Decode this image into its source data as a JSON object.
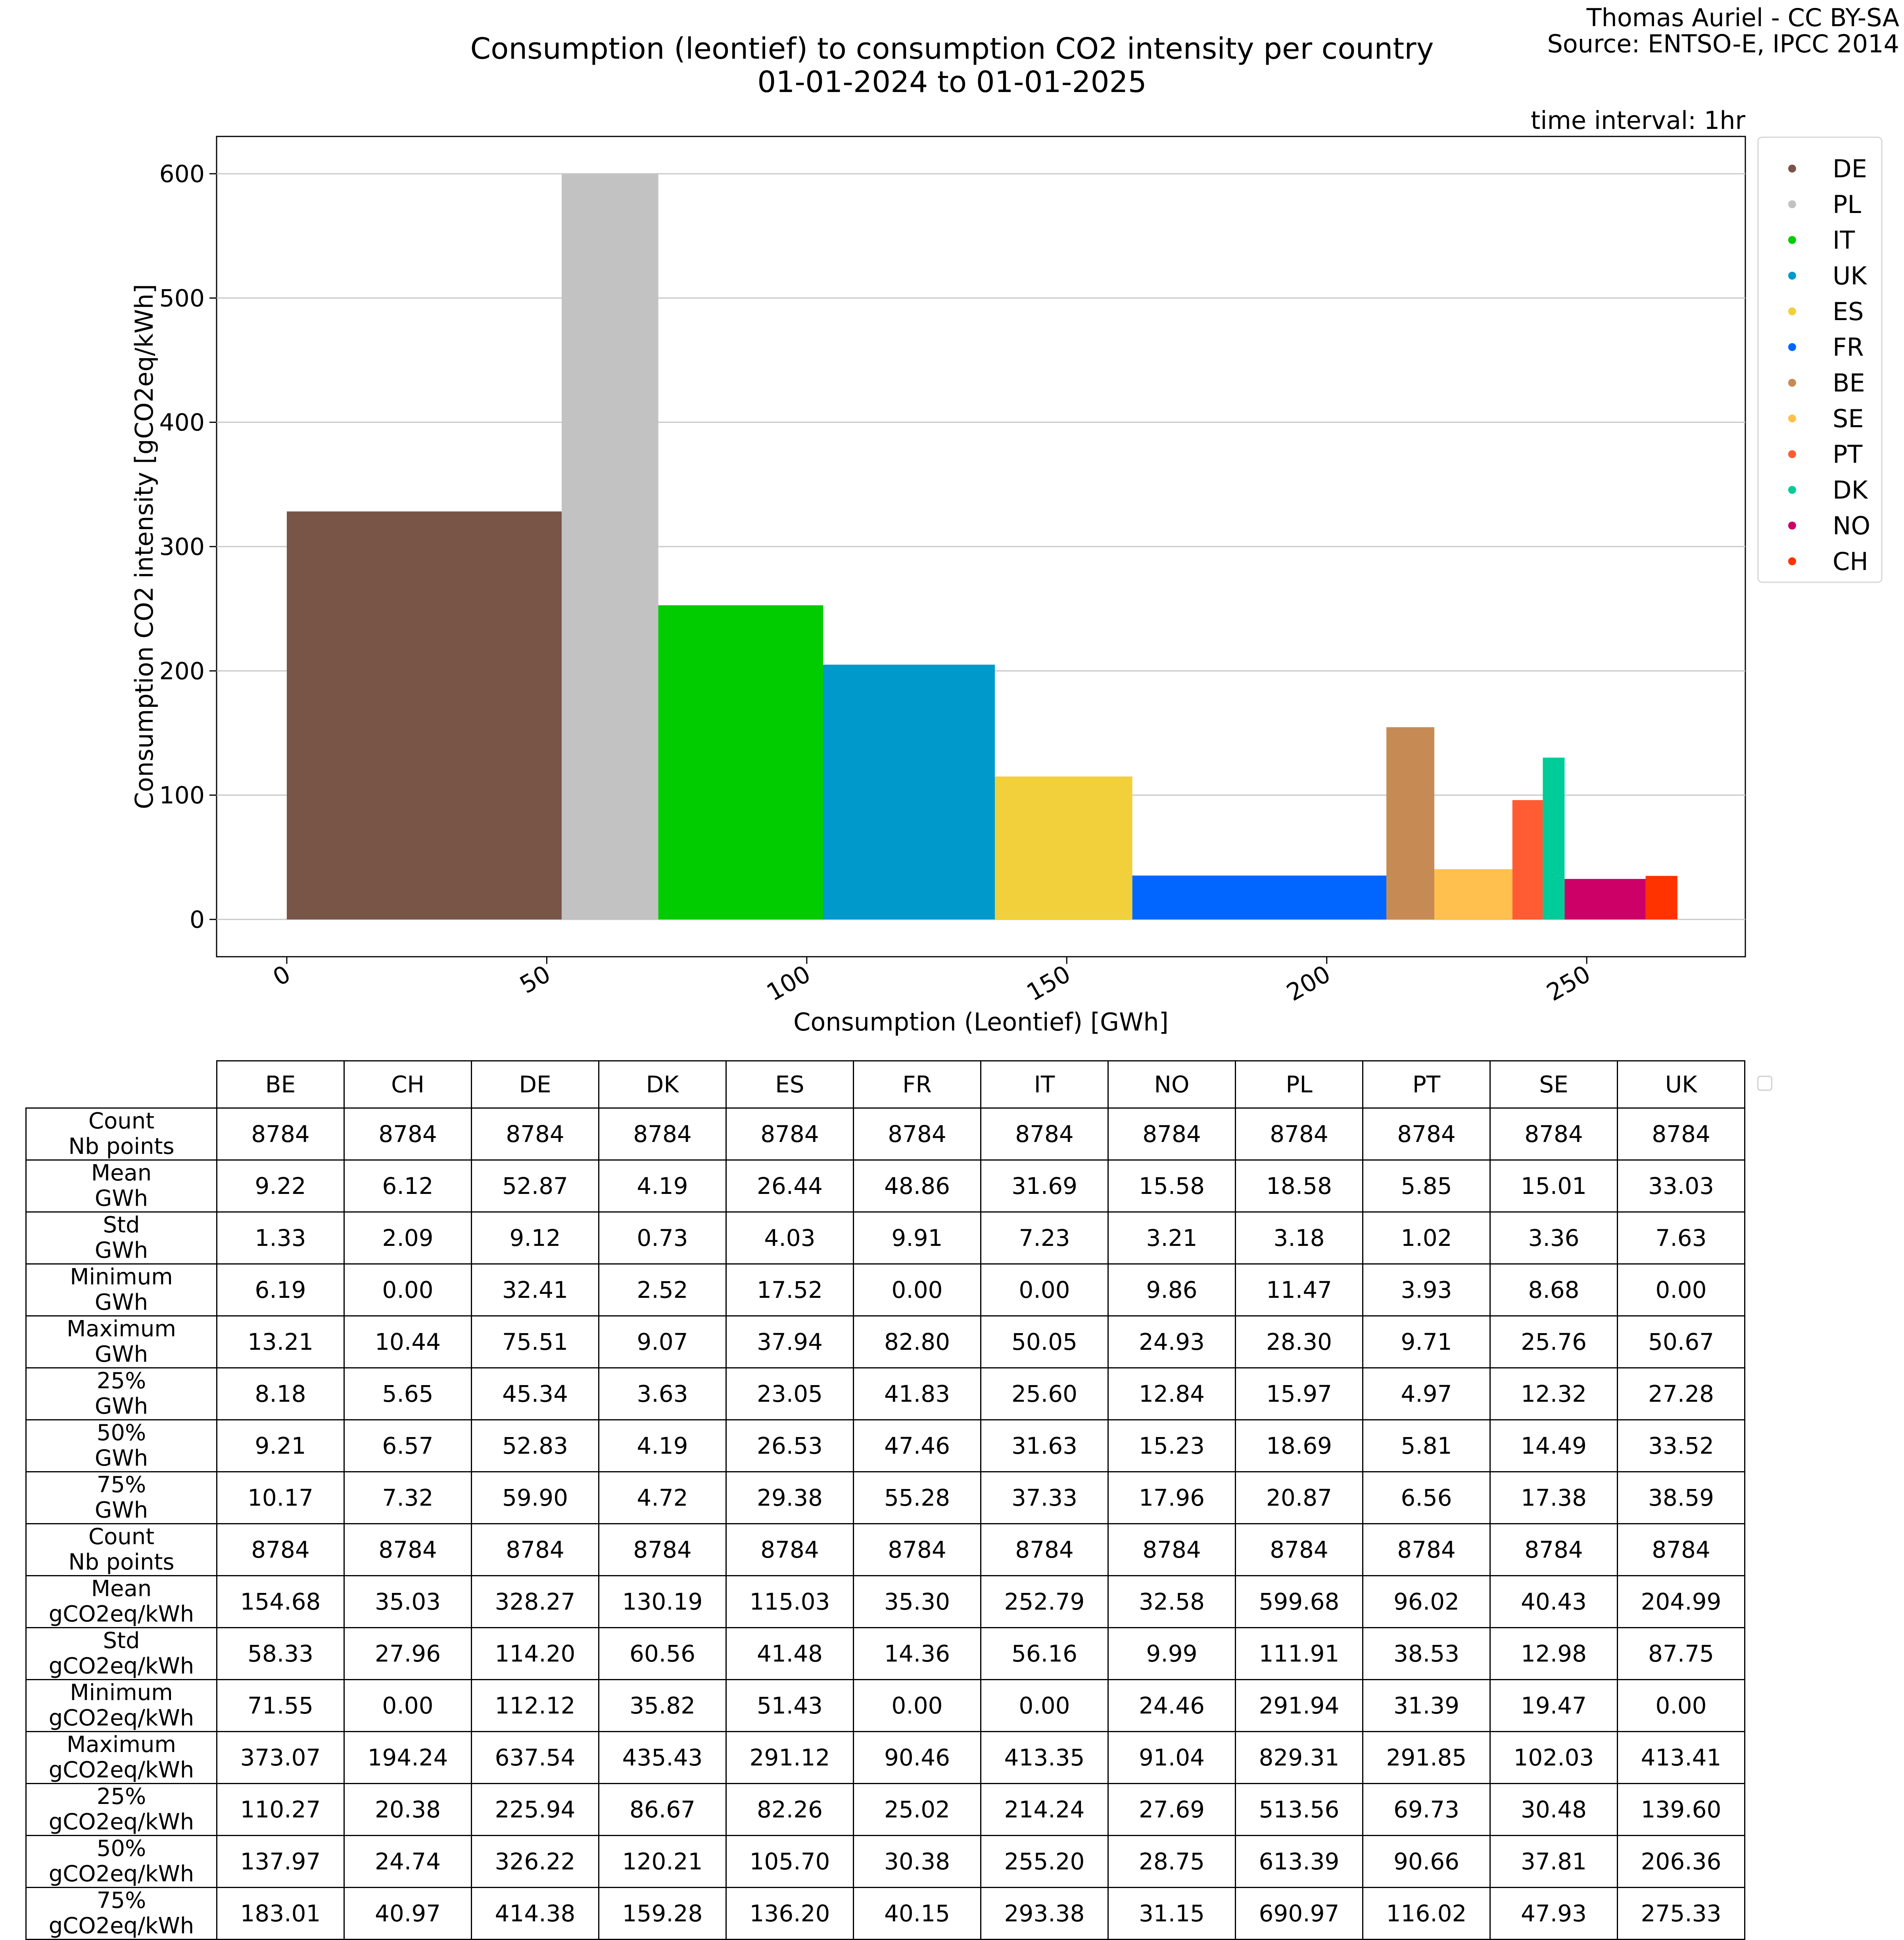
{
  "header": {
    "title_line1": "Consumption (leontief) to consumption CO2 intensity per country",
    "title_line2": "01-01-2024 to 01-01-2025",
    "credit_line1": "Thomas Auriel - CC BY-SA",
    "credit_line2": "Source: ENTSO-E, IPCC 2014",
    "interval": "time interval: 1hr"
  },
  "chart_data": {
    "type": "bar",
    "subtype": "variable-width bar chart (bar width = consumption, height = CO2 intensity)",
    "xlabel": "Consumption (Leontief) [GWh]",
    "ylabel": "Consumption CO2 intensity [gCO2eq/kWh]",
    "xlim": [
      -13.5,
      280.5
    ],
    "ylim": [
      -30,
      630
    ],
    "xticks": [
      0,
      50,
      100,
      150,
      200,
      250
    ],
    "yticks": [
      0,
      100,
      200,
      300,
      400,
      500,
      600
    ],
    "grid": "horizontal",
    "legend_position": "outside-right",
    "series": [
      {
        "name": "DE",
        "x_start": 0.0,
        "x_end": 52.87,
        "value": 328.27,
        "color": "#795548"
      },
      {
        "name": "PL",
        "x_start": 52.87,
        "x_end": 71.45,
        "value": 599.68,
        "color": "#c2c2c2"
      },
      {
        "name": "IT",
        "x_start": 71.45,
        "x_end": 103.14,
        "value": 252.79,
        "color": "#00cc00"
      },
      {
        "name": "UK",
        "x_start": 103.14,
        "x_end": 136.17,
        "value": 204.99,
        "color": "#0099cc"
      },
      {
        "name": "ES",
        "x_start": 136.17,
        "x_end": 162.61,
        "value": 115.03,
        "color": "#f2d03b"
      },
      {
        "name": "FR",
        "x_start": 162.61,
        "x_end": 211.47,
        "value": 35.3,
        "color": "#0066ff"
      },
      {
        "name": "BE",
        "x_start": 211.47,
        "x_end": 220.69,
        "value": 154.68,
        "color": "#c68b54"
      },
      {
        "name": "SE",
        "x_start": 220.69,
        "x_end": 235.7,
        "value": 40.43,
        "color": "#ffc04d"
      },
      {
        "name": "PT",
        "x_start": 235.7,
        "x_end": 241.55,
        "value": 96.02,
        "color": "#ff5c33"
      },
      {
        "name": "DK",
        "x_start": 241.55,
        "x_end": 245.74,
        "value": 130.19,
        "color": "#00cc99"
      },
      {
        "name": "NO",
        "x_start": 245.74,
        "x_end": 261.32,
        "value": 32.58,
        "color": "#cc0066"
      },
      {
        "name": "CH",
        "x_start": 261.32,
        "x_end": 267.44,
        "value": 35.03,
        "color": "#ff3300"
      }
    ]
  },
  "table": {
    "columns": [
      "BE",
      "CH",
      "DE",
      "DK",
      "ES",
      "FR",
      "IT",
      "NO",
      "PL",
      "PT",
      "SE",
      "UK"
    ],
    "rows": [
      {
        "label1": "Count",
        "label2": "Nb points",
        "values": [
          "8784",
          "8784",
          "8784",
          "8784",
          "8784",
          "8784",
          "8784",
          "8784",
          "8784",
          "8784",
          "8784",
          "8784"
        ]
      },
      {
        "label1": "Mean",
        "label2": "GWh",
        "values": [
          "9.22",
          "6.12",
          "52.87",
          "4.19",
          "26.44",
          "48.86",
          "31.69",
          "15.58",
          "18.58",
          "5.85",
          "15.01",
          "33.03"
        ]
      },
      {
        "label1": "Std",
        "label2": "GWh",
        "values": [
          "1.33",
          "2.09",
          "9.12",
          "0.73",
          "4.03",
          "9.91",
          "7.23",
          "3.21",
          "3.18",
          "1.02",
          "3.36",
          "7.63"
        ]
      },
      {
        "label1": "Minimum",
        "label2": "GWh",
        "values": [
          "6.19",
          "0.00",
          "32.41",
          "2.52",
          "17.52",
          "0.00",
          "0.00",
          "9.86",
          "11.47",
          "3.93",
          "8.68",
          "0.00"
        ]
      },
      {
        "label1": "Maximum",
        "label2": "GWh",
        "values": [
          "13.21",
          "10.44",
          "75.51",
          "9.07",
          "37.94",
          "82.80",
          "50.05",
          "24.93",
          "28.30",
          "9.71",
          "25.76",
          "50.67"
        ]
      },
      {
        "label1": "25%",
        "label2": "GWh",
        "values": [
          "8.18",
          "5.65",
          "45.34",
          "3.63",
          "23.05",
          "41.83",
          "25.60",
          "12.84",
          "15.97",
          "4.97",
          "12.32",
          "27.28"
        ]
      },
      {
        "label1": "50%",
        "label2": "GWh",
        "values": [
          "9.21",
          "6.57",
          "52.83",
          "4.19",
          "26.53",
          "47.46",
          "31.63",
          "15.23",
          "18.69",
          "5.81",
          "14.49",
          "33.52"
        ]
      },
      {
        "label1": "75%",
        "label2": "GWh",
        "values": [
          "10.17",
          "7.32",
          "59.90",
          "4.72",
          "29.38",
          "55.28",
          "37.33",
          "17.96",
          "20.87",
          "6.56",
          "17.38",
          "38.59"
        ]
      },
      {
        "label1": "Count",
        "label2": "Nb points",
        "values": [
          "8784",
          "8784",
          "8784",
          "8784",
          "8784",
          "8784",
          "8784",
          "8784",
          "8784",
          "8784",
          "8784",
          "8784"
        ]
      },
      {
        "label1": "Mean",
        "label2": "gCO2eq/kWh",
        "values": [
          "154.68",
          "35.03",
          "328.27",
          "130.19",
          "115.03",
          "35.30",
          "252.79",
          "32.58",
          "599.68",
          "96.02",
          "40.43",
          "204.99"
        ]
      },
      {
        "label1": "Std",
        "label2": "gCO2eq/kWh",
        "values": [
          "58.33",
          "27.96",
          "114.20",
          "60.56",
          "41.48",
          "14.36",
          "56.16",
          "9.99",
          "111.91",
          "38.53",
          "12.98",
          "87.75"
        ]
      },
      {
        "label1": "Minimum",
        "label2": "gCO2eq/kWh",
        "values": [
          "71.55",
          "0.00",
          "112.12",
          "35.82",
          "51.43",
          "0.00",
          "0.00",
          "24.46",
          "291.94",
          "31.39",
          "19.47",
          "0.00"
        ]
      },
      {
        "label1": "Maximum",
        "label2": "gCO2eq/kWh",
        "values": [
          "373.07",
          "194.24",
          "637.54",
          "435.43",
          "291.12",
          "90.46",
          "413.35",
          "91.04",
          "829.31",
          "291.85",
          "102.03",
          "413.41"
        ]
      },
      {
        "label1": "25%",
        "label2": "gCO2eq/kWh",
        "values": [
          "110.27",
          "20.38",
          "225.94",
          "86.67",
          "82.26",
          "25.02",
          "214.24",
          "27.69",
          "513.56",
          "69.73",
          "30.48",
          "139.60"
        ]
      },
      {
        "label1": "50%",
        "label2": "gCO2eq/kWh",
        "values": [
          "137.97",
          "24.74",
          "326.22",
          "120.21",
          "105.70",
          "30.38",
          "255.20",
          "28.75",
          "613.39",
          "90.66",
          "37.81",
          "206.36"
        ]
      },
      {
        "label1": "75%",
        "label2": "gCO2eq/kWh",
        "values": [
          "183.01",
          "40.97",
          "414.38",
          "159.28",
          "136.20",
          "40.15",
          "293.38",
          "31.15",
          "690.97",
          "116.02",
          "47.93",
          "275.33"
        ]
      }
    ]
  }
}
